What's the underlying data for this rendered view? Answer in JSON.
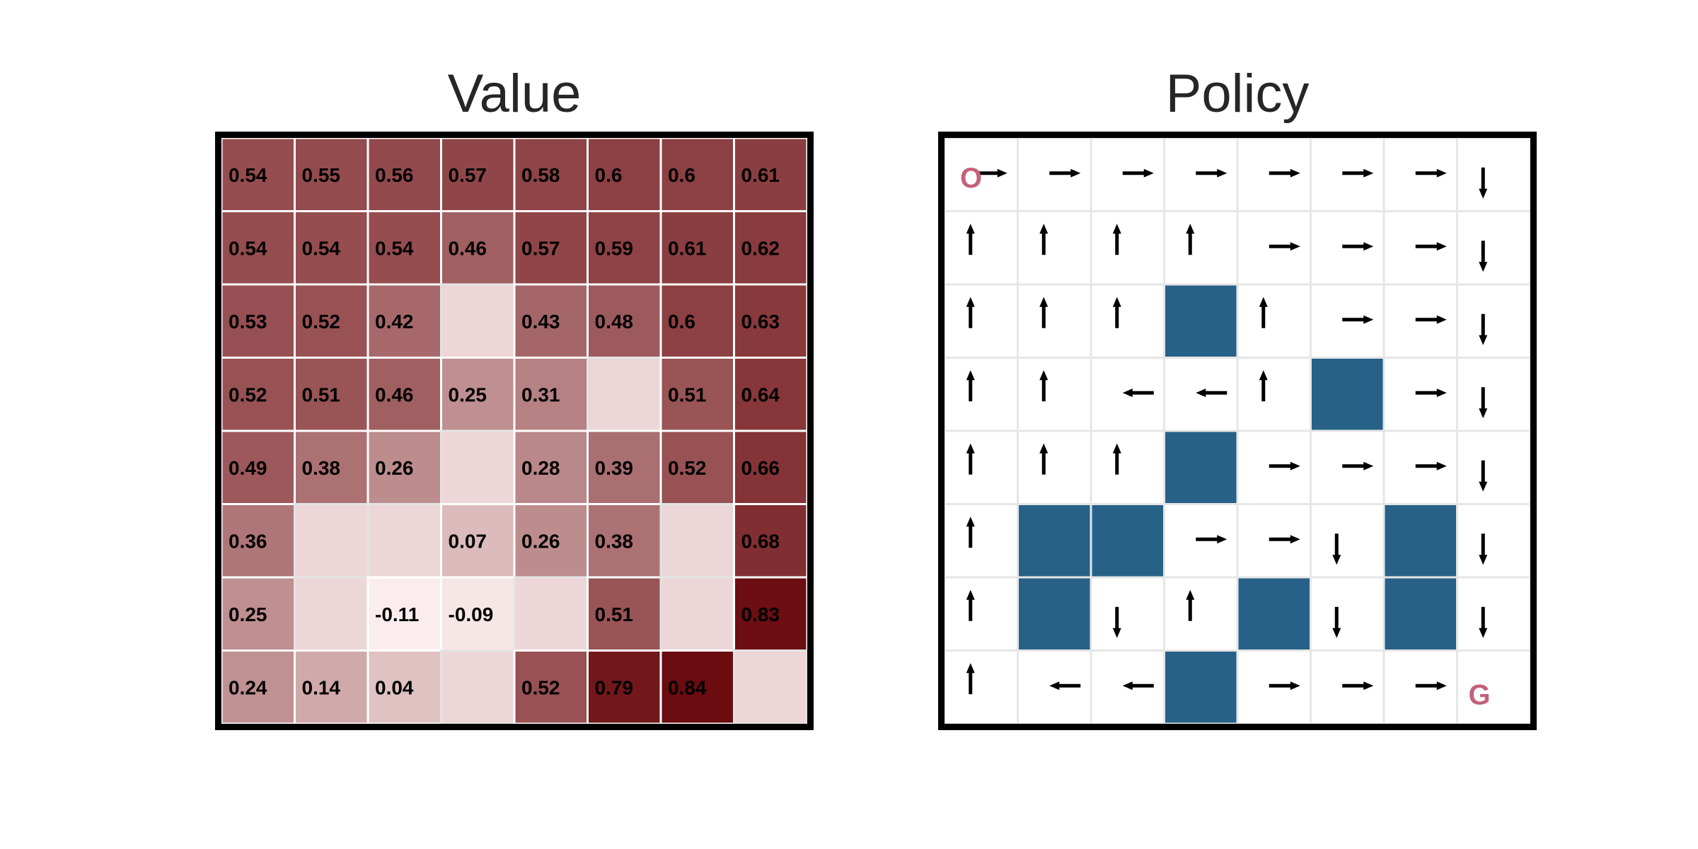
{
  "value_panel": {
    "title": "Value"
  },
  "policy_panel": {
    "title": "Policy",
    "start_label": "O",
    "goal_label": "G",
    "marker_color": "#c4607a"
  },
  "colors": {
    "wall": "#276188",
    "gridline_policy": "#e6e6e6",
    "gridline_value": "#ffffff",
    "value_low": "#fbeded",
    "value_high": "#6b0c10",
    "value_empty": "#ecd6d7"
  },
  "chart_data": [
    {
      "type": "heatmap",
      "title": "Value",
      "rows": 8,
      "cols": 8,
      "values": [
        [
          0.54,
          0.55,
          0.56,
          0.57,
          0.58,
          0.6,
          0.6,
          0.61
        ],
        [
          0.54,
          0.54,
          0.54,
          0.46,
          0.57,
          0.59,
          0.61,
          0.62
        ],
        [
          0.53,
          0.52,
          0.42,
          null,
          0.43,
          0.48,
          0.6,
          0.63
        ],
        [
          0.52,
          0.51,
          0.46,
          0.25,
          0.31,
          null,
          0.51,
          0.64
        ],
        [
          0.49,
          0.38,
          0.26,
          null,
          0.28,
          0.39,
          0.52,
          0.66
        ],
        [
          0.36,
          null,
          null,
          0.07,
          0.26,
          0.38,
          null,
          0.68
        ],
        [
          0.25,
          null,
          -0.11,
          -0.09,
          null,
          0.51,
          null,
          0.83
        ],
        [
          0.24,
          0.14,
          0.04,
          null,
          0.52,
          0.79,
          0.84,
          null
        ]
      ],
      "labels": [
        [
          "0.54",
          "0.55",
          "0.56",
          "0.57",
          "0.58",
          "0.6",
          "0.6",
          "0.61"
        ],
        [
          "0.54",
          "0.54",
          "0.54",
          "0.46",
          "0.57",
          "0.59",
          "0.61",
          "0.62"
        ],
        [
          "0.53",
          "0.52",
          "0.42",
          "",
          "0.43",
          "0.48",
          "0.6",
          "0.63"
        ],
        [
          "0.52",
          "0.51",
          "0.46",
          "0.25",
          "0.31",
          "",
          "0.51",
          "0.64"
        ],
        [
          "0.49",
          "0.38",
          "0.26",
          "",
          "0.28",
          "0.39",
          "0.52",
          "0.66"
        ],
        [
          "0.36",
          "",
          "",
          "0.07",
          "0.26",
          "0.38",
          "",
          "0.68"
        ],
        [
          "0.25",
          "",
          "-0.11",
          "-0.09",
          "",
          "0.51",
          "",
          "0.83"
        ],
        [
          "0.24",
          "0.14",
          "0.04",
          "",
          "0.52",
          "0.79",
          "0.84",
          ""
        ]
      ],
      "color_range": [
        -0.11,
        0.84
      ]
    },
    {
      "type": "table",
      "title": "Policy",
      "rows": 8,
      "cols": 8,
      "actions": [
        [
          "right",
          "right",
          "right",
          "right",
          "right",
          "right",
          "right",
          "down"
        ],
        [
          "up",
          "up",
          "up",
          "up",
          "right",
          "right",
          "right",
          "down"
        ],
        [
          "up",
          "up",
          "up",
          "wall",
          "up",
          "right",
          "right",
          "down"
        ],
        [
          "up",
          "up",
          "left",
          "left",
          "up",
          "wall",
          "right",
          "down"
        ],
        [
          "up",
          "up",
          "up",
          "wall",
          "right",
          "right",
          "right",
          "down"
        ],
        [
          "up",
          "wall",
          "wall",
          "right",
          "right",
          "down",
          "wall",
          "down"
        ],
        [
          "up",
          "wall",
          "down",
          "up",
          "wall",
          "down",
          "wall",
          "down"
        ],
        [
          "up",
          "left",
          "left",
          "wall",
          "right",
          "right",
          "right",
          "goal"
        ]
      ],
      "start": [
        0,
        0
      ],
      "goal": [
        7,
        7
      ]
    }
  ]
}
